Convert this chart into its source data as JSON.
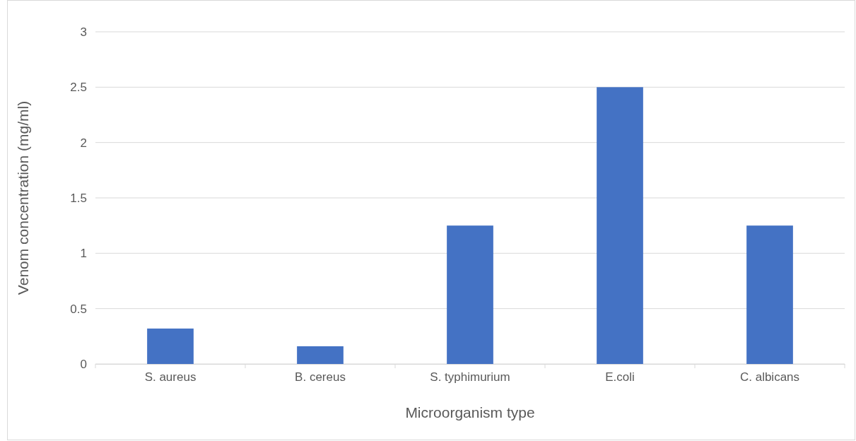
{
  "chart_data": {
    "type": "bar",
    "xlabel": "Microorganism type",
    "ylabel": "Venom concentration (mg/ml)",
    "categories": [
      "S. aureus",
      "B. cereus",
      "S. typhimurium",
      "E.coli",
      "C. albicans"
    ],
    "values": [
      0.32,
      0.16,
      1.25,
      2.5,
      1.25
    ],
    "color": "#4472c4",
    "ylim": [
      0,
      3
    ],
    "yticks": [
      0,
      0.5,
      1,
      1.5,
      2,
      2.5,
      3
    ],
    "grid": "y"
  }
}
